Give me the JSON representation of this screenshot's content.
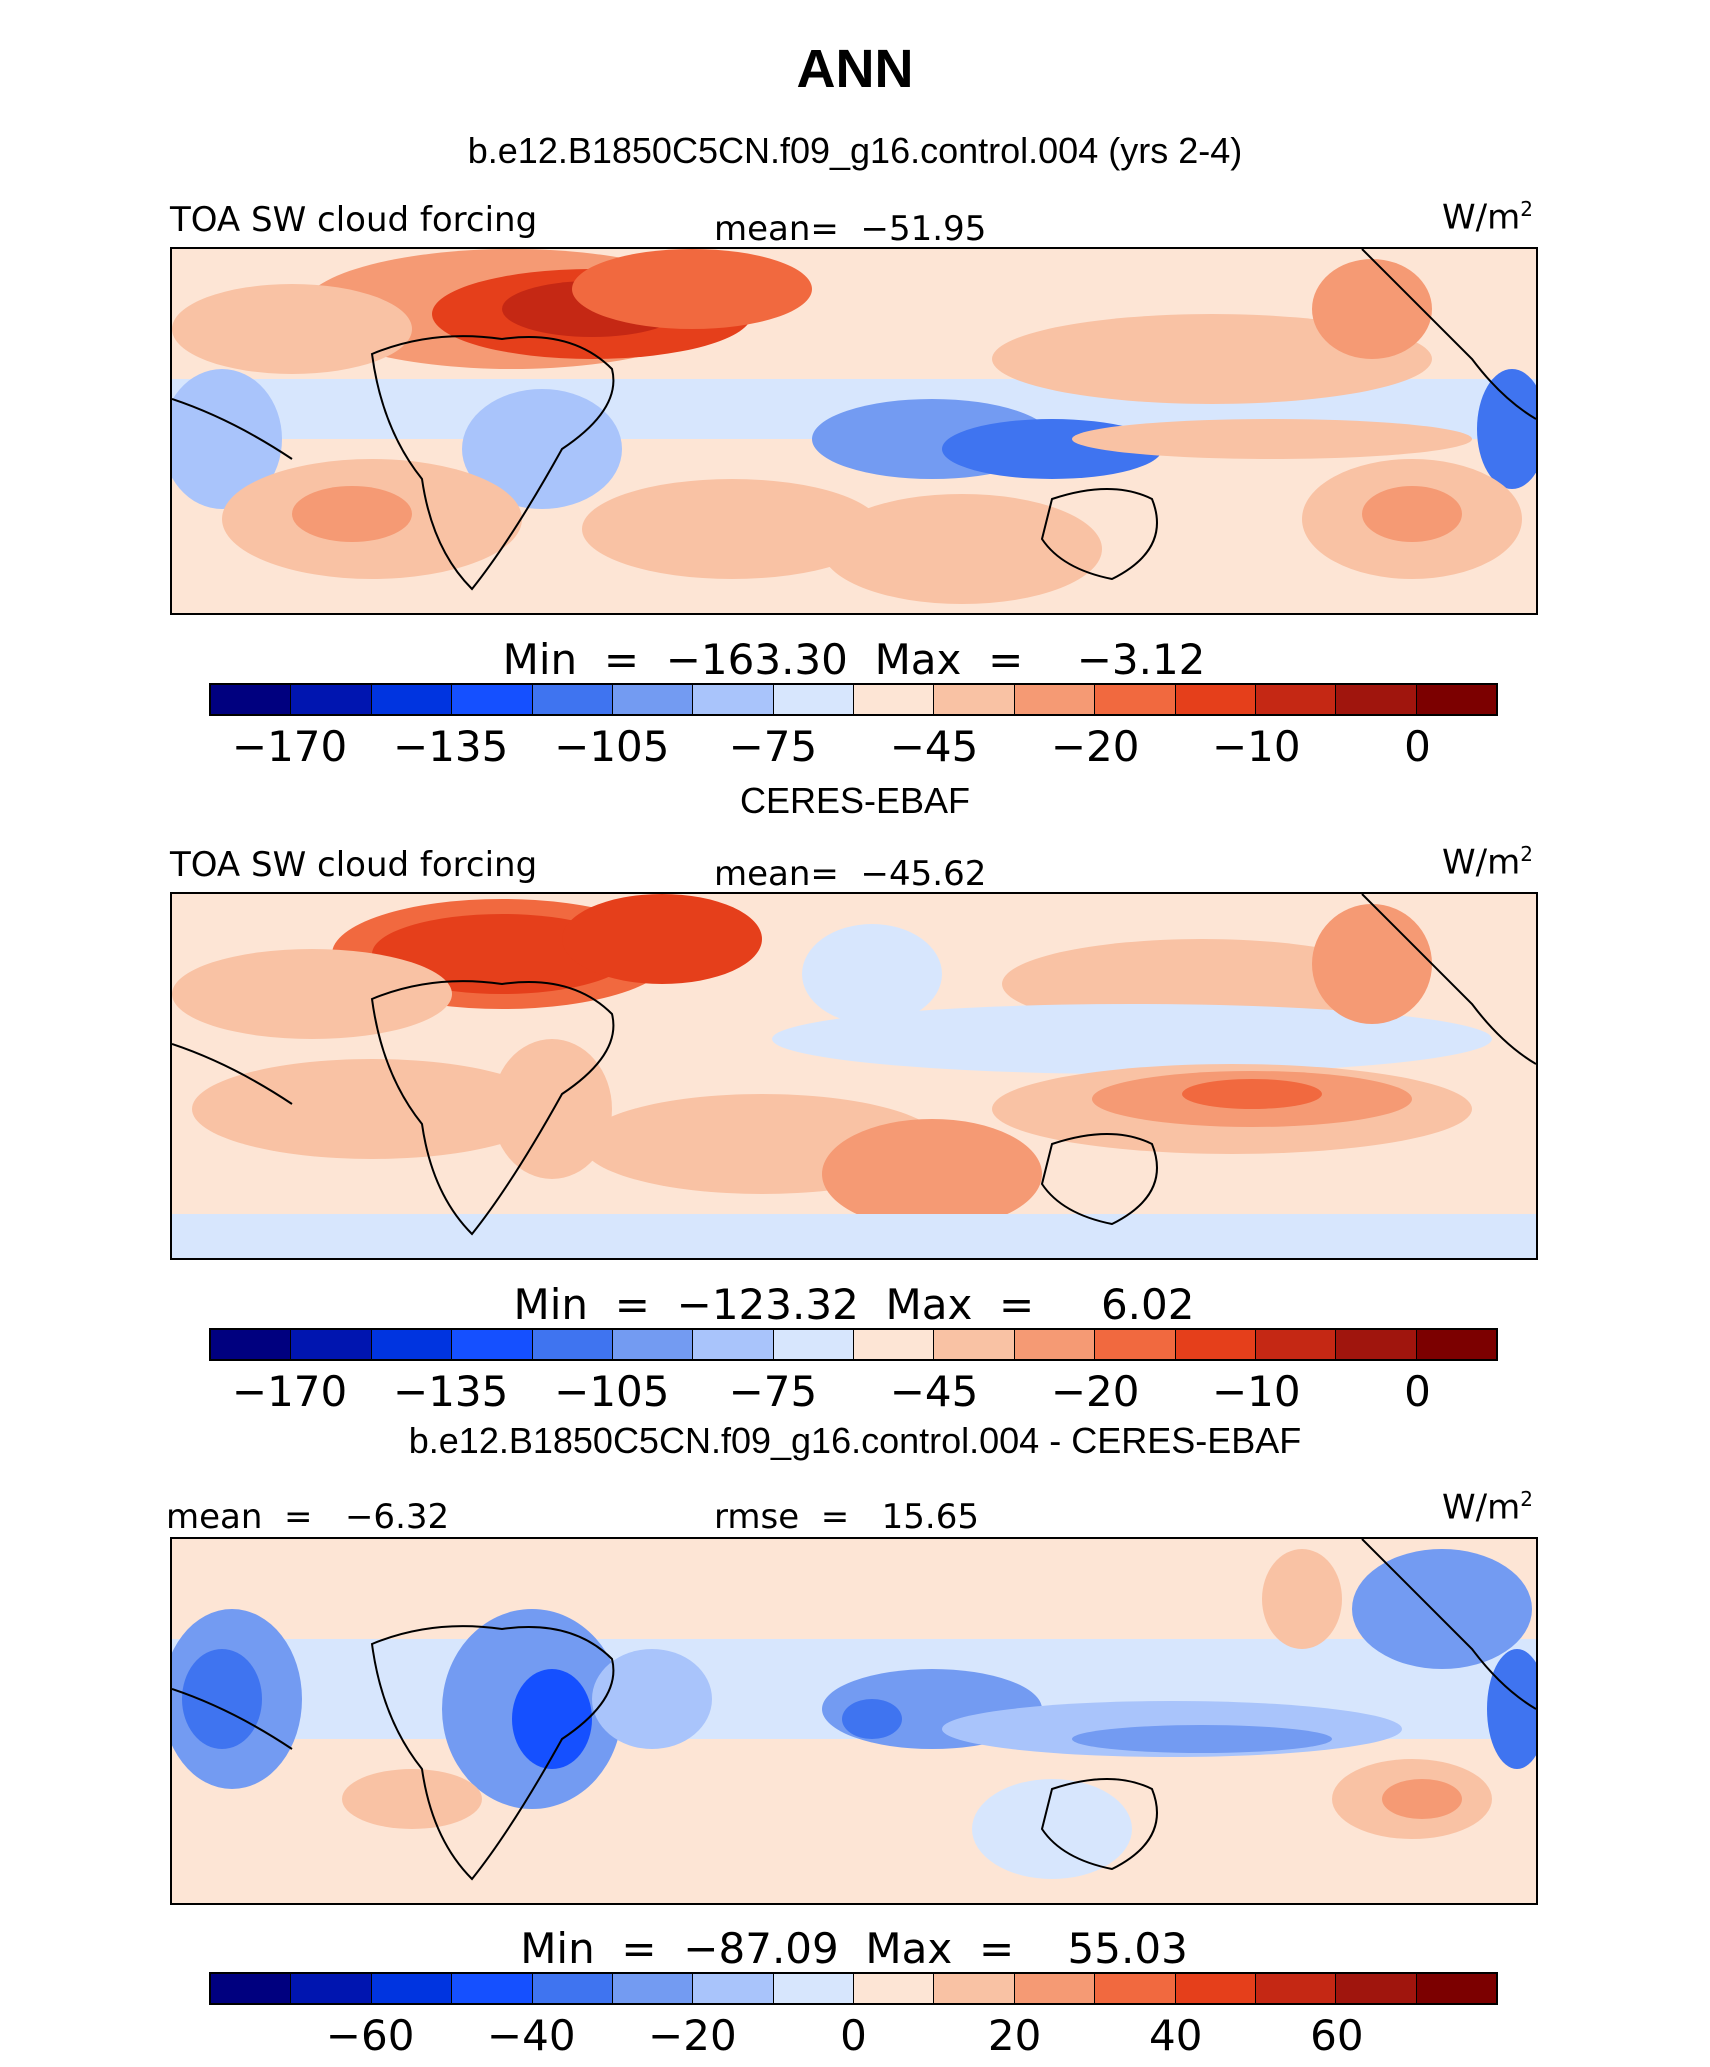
{
  "title": "ANN",
  "units": "W/m",
  "units_exp": "2",
  "panels": [
    {
      "title": "b.e12.B1850C5CN.f09_g16.control.004 (yrs 2-4)",
      "left_label": "TOA SW cloud forcing",
      "center_label": "mean=  −51.95",
      "minmax": "Min  =  −163.30  Max  =    −3.12",
      "ticks": [
        "−170",
        "−135",
        "−105",
        "−75",
        "−45",
        "−20",
        "−10",
        "0"
      ]
    },
    {
      "title": "CERES-EBAF",
      "left_label": "TOA SW cloud forcing",
      "center_label": "mean=  −45.62",
      "minmax": "Min  =  −123.32  Max  =     6.02",
      "ticks": [
        "−170",
        "−135",
        "−105",
        "−75",
        "−45",
        "−20",
        "−10",
        "0"
      ]
    },
    {
      "title": "b.e12.B1850C5CN.f09_g16.control.004 - CERES-EBAF",
      "left_label": "mean  =   −6.32",
      "center_label": "rmse  =   15.65",
      "minmax": "Min  =  −87.09  Max  =    55.03",
      "ticks": [
        "−60",
        "−40",
        "−20",
        "0",
        "20",
        "40",
        "60"
      ]
    }
  ],
  "colors": {
    "palette": [
      "#00007f",
      "#0015b0",
      "#0034e0",
      "#1550ff",
      "#3f74f0",
      "#739bf2",
      "#a9c4fb",
      "#d7e6fd",
      "#fde5d5",
      "#f9c2a4",
      "#f59a74",
      "#f1693f",
      "#e53f1b",
      "#c52814",
      "#a0150d",
      "#7c0000"
    ]
  }
}
